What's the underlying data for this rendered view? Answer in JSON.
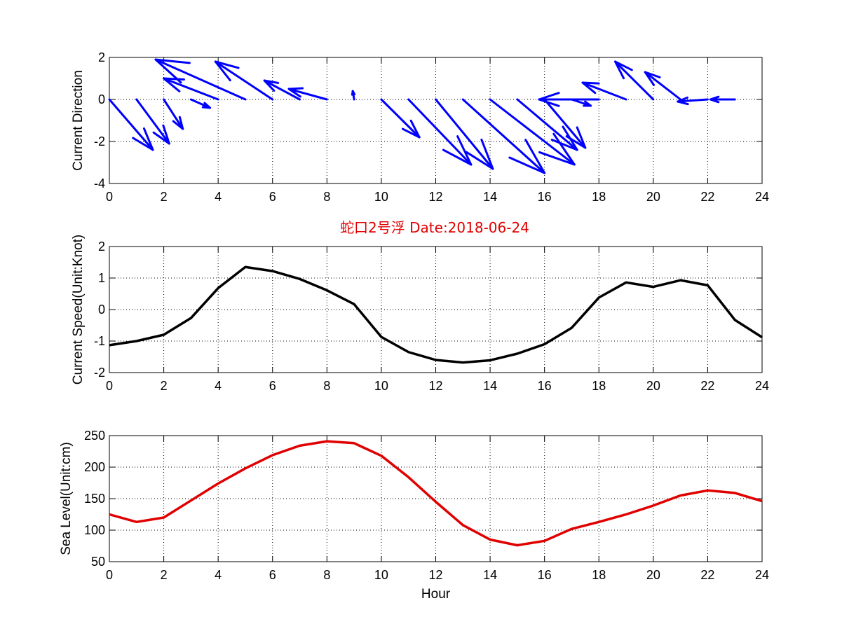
{
  "title": "蛇口2号浮   Date:2018-06-24",
  "title_color": "#e00000",
  "colors": {
    "arrows": "#0000ff",
    "speed": "#000000",
    "sea_level": "#e00000",
    "grid": "#000000"
  },
  "chart_data": [
    {
      "type": "quiver",
      "ylabel": "Current Direction",
      "xlabel": "",
      "xlim": [
        0,
        24
      ],
      "ylim": [
        -4,
        2
      ],
      "xticks": [
        0,
        2,
        4,
        6,
        8,
        10,
        12,
        14,
        16,
        18,
        20,
        22,
        24
      ],
      "yticks": [
        -4,
        -2,
        0,
        2
      ],
      "grid": true,
      "x": [
        0,
        1,
        2,
        3,
        4,
        5,
        6,
        7,
        8,
        9,
        10,
        11,
        12,
        13,
        14,
        15,
        16,
        17,
        18,
        19,
        20,
        21,
        22,
        23
      ],
      "u": [
        1.6,
        1.2,
        0.7,
        0.7,
        -2.0,
        -3.3,
        -2.1,
        -1.3,
        -1.4,
        -0.05,
        1.4,
        2.3,
        2.1,
        3.0,
        3.1,
        2.2,
        1.5,
        0.7,
        -2.2,
        -1.6,
        -1.4,
        -1.3,
        -1.1,
        -0.9
      ],
      "v": [
        -2.4,
        -2.1,
        -1.4,
        -0.4,
        1.0,
        1.9,
        1.8,
        0.9,
        0.5,
        0.4,
        -1.8,
        -3.1,
        -3.3,
        -3.5,
        -3.1,
        -2.4,
        -2.3,
        -0.3,
        0.0,
        0.8,
        1.8,
        1.3,
        -0.1,
        0.0
      ]
    },
    {
      "type": "line",
      "ylabel": "Current Speed(Unit:Knot)",
      "xlabel": "",
      "xlim": [
        0,
        24
      ],
      "ylim": [
        -2,
        2
      ],
      "xticks": [
        0,
        2,
        4,
        6,
        8,
        10,
        12,
        14,
        16,
        18,
        20,
        22,
        24
      ],
      "yticks": [
        -2,
        -1,
        0,
        1,
        2
      ],
      "grid": true,
      "x": [
        0,
        1,
        2,
        3,
        4,
        5,
        6,
        7,
        8,
        9,
        10,
        11,
        12,
        13,
        14,
        15,
        16,
        17,
        18,
        19,
        20,
        21,
        22,
        23,
        24
      ],
      "values": [
        -1.13,
        -1.0,
        -0.8,
        -0.27,
        0.68,
        1.35,
        1.22,
        0.97,
        0.61,
        0.17,
        -0.87,
        -1.35,
        -1.6,
        -1.68,
        -1.61,
        -1.4,
        -1.1,
        -0.58,
        0.38,
        0.86,
        0.72,
        0.93,
        0.77,
        -0.33,
        -0.88
      ]
    },
    {
      "type": "line",
      "ylabel": "Sea Level(Unit:cm)",
      "xlabel": "Hour",
      "xlim": [
        0,
        24
      ],
      "ylim": [
        50,
        250
      ],
      "xticks": [
        0,
        2,
        4,
        6,
        8,
        10,
        12,
        14,
        16,
        18,
        20,
        22,
        24
      ],
      "yticks": [
        50,
        100,
        150,
        200,
        250
      ],
      "grid": true,
      "x": [
        0,
        1,
        2,
        3,
        4,
        5,
        6,
        7,
        8,
        9,
        10,
        11,
        12,
        13,
        14,
        15,
        16,
        17,
        18,
        19,
        20,
        21,
        22,
        23,
        24
      ],
      "values": [
        125,
        113,
        120,
        147,
        174,
        198,
        219,
        234,
        241,
        238,
        218,
        184,
        145,
        108,
        85,
        76,
        83,
        102,
        113,
        125,
        139,
        155,
        163,
        159,
        146
      ]
    }
  ]
}
